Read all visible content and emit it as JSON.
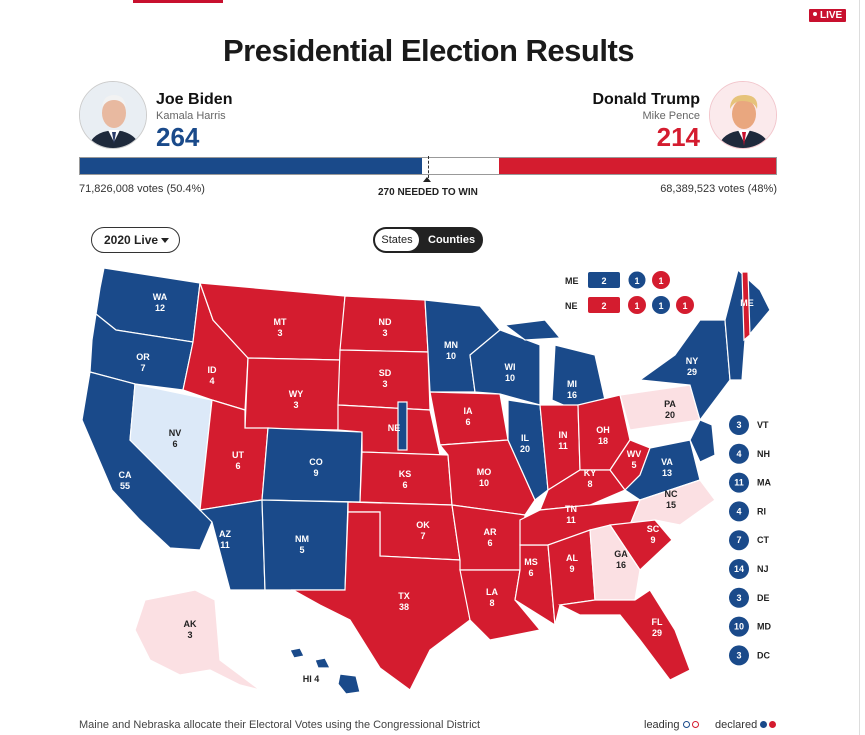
{
  "live_badge": "LIVE",
  "title": "Presidential Election Results",
  "dem": {
    "name": "Joe Biden",
    "vp": "Kamala Harris",
    "ev": "264",
    "votes": "71,826,008 votes (50.4%)",
    "ev_fraction": 0.4907
  },
  "rep": {
    "name": "Donald Trump",
    "vp": "Mike Pence",
    "ev": "214",
    "votes": "68,389,523 votes (48%)",
    "ev_fraction": 0.3978
  },
  "needed_label": "270 NEEDED TO WIN",
  "year_select": "2020 Live",
  "toggle": {
    "states": "States",
    "counties": "Counties"
  },
  "colors": {
    "dem": "#1a4a8a",
    "rep": "#d41c2f",
    "dem_lean": "#dce9f8",
    "rep_lean": "#fbe0e3"
  },
  "footnote": "Maine and Nebraska allocate their Electoral Votes using the Congressional District",
  "legend": {
    "leading": "leading",
    "declared": "declared"
  },
  "states": [
    {
      "abbr": "WA",
      "ev": "12"
    },
    {
      "abbr": "OR",
      "ev": "7"
    },
    {
      "abbr": "CA",
      "ev": "55"
    },
    {
      "abbr": "NV",
      "ev": "6"
    },
    {
      "abbr": "ID",
      "ev": "4"
    },
    {
      "abbr": "MT",
      "ev": "3"
    },
    {
      "abbr": "WY",
      "ev": "3"
    },
    {
      "abbr": "UT",
      "ev": "6"
    },
    {
      "abbr": "AZ",
      "ev": "11"
    },
    {
      "abbr": "CO",
      "ev": "9"
    },
    {
      "abbr": "NM",
      "ev": "5"
    },
    {
      "abbr": "ND",
      "ev": "3"
    },
    {
      "abbr": "SD",
      "ev": "3"
    },
    {
      "abbr": "NE",
      "ev": ""
    },
    {
      "abbr": "KS",
      "ev": "6"
    },
    {
      "abbr": "OK",
      "ev": "7"
    },
    {
      "abbr": "TX",
      "ev": "38"
    },
    {
      "abbr": "MN",
      "ev": "10"
    },
    {
      "abbr": "IA",
      "ev": "6"
    },
    {
      "abbr": "MO",
      "ev": "10"
    },
    {
      "abbr": "AR",
      "ev": "6"
    },
    {
      "abbr": "LA",
      "ev": "8"
    },
    {
      "abbr": "WI",
      "ev": "10"
    },
    {
      "abbr": "IL",
      "ev": "20"
    },
    {
      "abbr": "MS",
      "ev": "6"
    },
    {
      "abbr": "MI",
      "ev": "16"
    },
    {
      "abbr": "IN",
      "ev": "11"
    },
    {
      "abbr": "KY",
      "ev": "8"
    },
    {
      "abbr": "TN",
      "ev": "11"
    },
    {
      "abbr": "AL",
      "ev": "9"
    },
    {
      "abbr": "OH",
      "ev": "18"
    },
    {
      "abbr": "WV",
      "ev": "5"
    },
    {
      "abbr": "VA",
      "ev": "13"
    },
    {
      "abbr": "NC",
      "ev": "15"
    },
    {
      "abbr": "SC",
      "ev": "9"
    },
    {
      "abbr": "GA",
      "ev": "16"
    },
    {
      "abbr": "FL",
      "ev": "29"
    },
    {
      "abbr": "PA",
      "ev": "20"
    },
    {
      "abbr": "NY",
      "ev": "29"
    },
    {
      "abbr": "ME",
      "ev": ""
    },
    {
      "abbr": "AK",
      "ev": "3"
    },
    {
      "abbr": "HI",
      "ev": "4"
    }
  ],
  "small_states": [
    {
      "ev": "3",
      "abbr": "VT"
    },
    {
      "ev": "4",
      "abbr": "NH"
    },
    {
      "ev": "11",
      "abbr": "MA"
    },
    {
      "ev": "4",
      "abbr": "RI"
    },
    {
      "ev": "7",
      "abbr": "CT"
    },
    {
      "ev": "14",
      "abbr": "NJ"
    },
    {
      "ev": "3",
      "abbr": "DE"
    },
    {
      "ev": "10",
      "abbr": "MD"
    },
    {
      "ev": "3",
      "abbr": "DC"
    }
  ],
  "split": {
    "me": {
      "label": "ME",
      "box": "2",
      "circles": [
        "1",
        "1"
      ]
    },
    "ne": {
      "label": "NE",
      "box": "2",
      "circles": [
        "1",
        "1",
        "1"
      ]
    }
  }
}
